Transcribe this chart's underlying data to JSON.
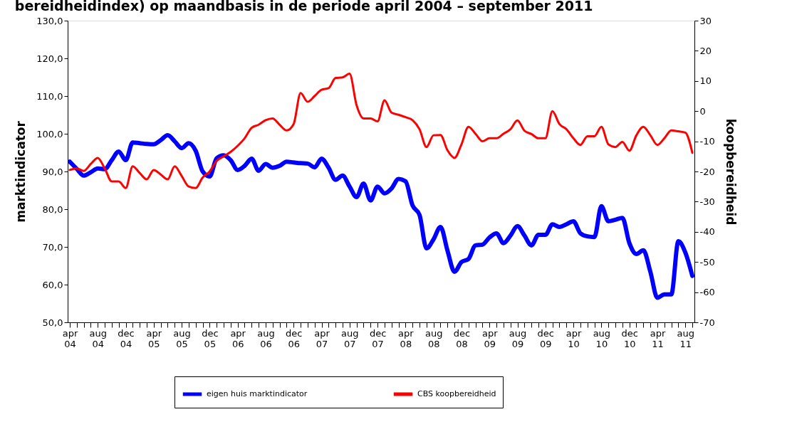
{
  "chart_data": {
    "type": "line",
    "title": "bereidheidindex) op maandbasis in de periode april 2004 – september 2011",
    "ylabel": "marktindicator",
    "y2label": "koopbereidheid",
    "categories": [
      "apr 04",
      null,
      null,
      null,
      "aug 04",
      null,
      null,
      null,
      "dec 04",
      null,
      null,
      null,
      "apr 05",
      null,
      null,
      null,
      "aug 05",
      null,
      null,
      null,
      "dec 05",
      null,
      null,
      null,
      "apr 06",
      null,
      null,
      null,
      "aug 06",
      null,
      null,
      null,
      "dec 06",
      null,
      null,
      null,
      "apr 07",
      null,
      null,
      null,
      "aug 07",
      null,
      null,
      null,
      "dec 07",
      null,
      null,
      null,
      "apr 08",
      null,
      null,
      null,
      "aug 08",
      null,
      null,
      null,
      "dec 08",
      null,
      null,
      null,
      "apr 09",
      null,
      null,
      null,
      "aug 09",
      null,
      null,
      null,
      "dec 09",
      null,
      null,
      null,
      "apr 10",
      null,
      null,
      null,
      "aug 10",
      null,
      null,
      null,
      "dec 10",
      null,
      null,
      null,
      "apr 11",
      null,
      null,
      null,
      "aug 11",
      null
    ],
    "series": [
      {
        "name": "eigen huis marktindicator",
        "color": "#0000ff",
        "values": [
          92.6,
          90.7,
          88.9,
          89.8,
          90.8,
          90.6,
          93,
          95.3,
          93,
          97.7,
          97.5,
          97.3,
          97.2,
          98.3,
          99.6,
          98,
          96.2,
          97.5,
          95.5,
          90,
          88.7,
          93.5,
          94.3,
          93,
          90.4,
          91.5,
          93.4,
          90.2,
          92,
          91,
          91.5,
          92.6,
          92.4,
          92.2,
          92.1,
          91.1,
          93.4,
          91,
          87.8,
          88.9,
          86,
          83.2,
          86.8,
          82.3,
          86,
          84.2,
          85.5,
          88,
          87.4,
          81,
          78.5,
          69.6,
          72,
          75.3,
          69,
          63.4,
          66,
          66.8,
          70.4,
          70.6,
          72.5,
          73.6,
          71,
          73,
          75.5,
          73,
          70.4,
          73.2,
          73.2,
          76,
          75.3,
          76,
          76.8,
          73.6,
          72.8,
          72.6,
          80.8,
          76.8,
          77.2,
          77.7,
          71,
          68.1,
          69.1,
          63.4,
          56.5,
          57.4,
          57.4,
          71.5,
          68.5,
          62.3
        ]
      },
      {
        "name": "CBS koopbereidheid",
        "color": "#ff0000",
        "axis": "y2",
        "values": [
          -19.5,
          -19,
          -19.8,
          -17.5,
          -15.5,
          -19,
          -23.3,
          -23.3,
          -25.5,
          -18.3,
          -20.5,
          -22.6,
          -19.5,
          -21,
          -22.6,
          -18.3,
          -21.5,
          -25,
          -25.5,
          -22,
          -20,
          -16.5,
          -15,
          -13.5,
          -11.5,
          -9,
          -5.5,
          -4.5,
          -3,
          -2.4,
          -4.5,
          -6.4,
          -4.3,
          6,
          3.1,
          5,
          7.1,
          7.6,
          11,
          11.2,
          12.4,
          2,
          -2.4,
          -2.4,
          -3.4,
          3.6,
          -0.5,
          -1.2,
          -2,
          -3,
          -6,
          -11.9,
          -8,
          -7.9,
          -13,
          -15.5,
          -11,
          -5.2,
          -7.5,
          -10,
          -9,
          -9,
          -7.5,
          -6,
          -3.1,
          -6.5,
          -7.6,
          -9,
          -9,
          0,
          -4.3,
          -6,
          -9,
          -11.2,
          -8.3,
          -8.3,
          -5.2,
          -11,
          -11.9,
          -10.2,
          -13.1,
          -8,
          -5.2,
          -8,
          -11.2,
          -9,
          -6.4,
          -6.7,
          -7.1,
          -13.8
        ]
      }
    ],
    "ylim": [
      50,
      130
    ],
    "yticks": [
      {
        "value": 50,
        "label": "50,0"
      },
      {
        "value": 60,
        "label": "60,0"
      },
      {
        "value": 70,
        "label": "70,0"
      },
      {
        "value": 80,
        "label": "80,0"
      },
      {
        "value": 90,
        "label": "90,0"
      },
      {
        "value": 100,
        "label": "100,0"
      },
      {
        "value": 110,
        "label": "110,0"
      },
      {
        "value": 120,
        "label": "120,0"
      },
      {
        "value": 130,
        "label": "130,0"
      }
    ],
    "y2lim": [
      -70,
      30
    ],
    "y2ticks": [
      -70,
      -60,
      -50,
      -40,
      -30,
      -20,
      -10,
      0,
      10,
      20,
      30
    ],
    "legend": "bottom",
    "grid": false,
    "marker": "none",
    "line_style": "solid"
  }
}
